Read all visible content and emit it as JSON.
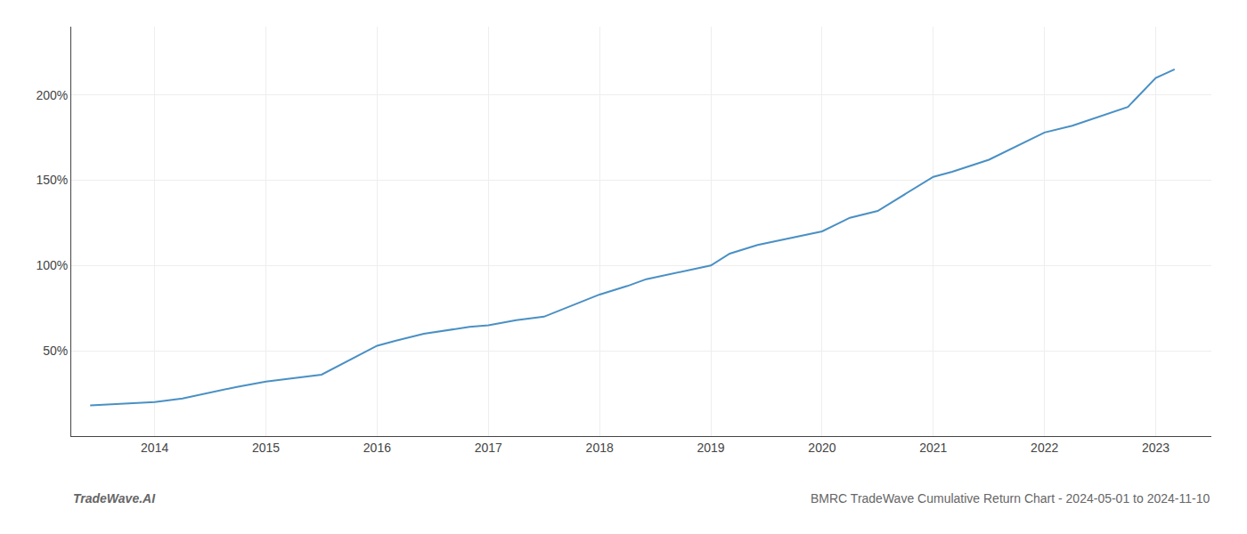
{
  "chart_data": {
    "type": "line",
    "title": "BMRC TradeWave Cumulative Return Chart - 2024-05-01 to 2024-11-10",
    "annotations": [
      "TradeWave.AI"
    ],
    "x": [
      2013.42,
      2014.0,
      2014.25,
      2014.75,
      2015.0,
      2015.5,
      2016.0,
      2016.17,
      2016.42,
      2016.83,
      2017.0,
      2017.25,
      2017.5,
      2018.0,
      2018.25,
      2018.42,
      2019.0,
      2019.17,
      2019.42,
      2020.0,
      2020.25,
      2020.5,
      2021.0,
      2021.17,
      2021.5,
      2022.0,
      2022.25,
      2022.75,
      2023.0,
      2023.17
    ],
    "values": [
      18,
      20,
      22,
      29,
      32,
      36,
      53,
      56,
      60,
      64,
      65,
      68,
      70,
      83,
      88,
      92,
      100,
      107,
      112,
      120,
      128,
      132,
      152,
      155,
      162,
      178,
      182,
      193,
      210,
      215
    ],
    "color": "#4a90c4",
    "xlim": [
      2013.25,
      2023.5
    ],
    "ylim": [
      0,
      240
    ],
    "xticks": [
      2014,
      2015,
      2016,
      2017,
      2018,
      2019,
      2020,
      2021,
      2022,
      2023
    ],
    "yticks": [
      {
        "value": 50,
        "label": "50%"
      },
      {
        "value": 100,
        "label": "100%"
      },
      {
        "value": 150,
        "label": "150%"
      },
      {
        "value": 200,
        "label": "200%"
      }
    ],
    "grid": true
  }
}
